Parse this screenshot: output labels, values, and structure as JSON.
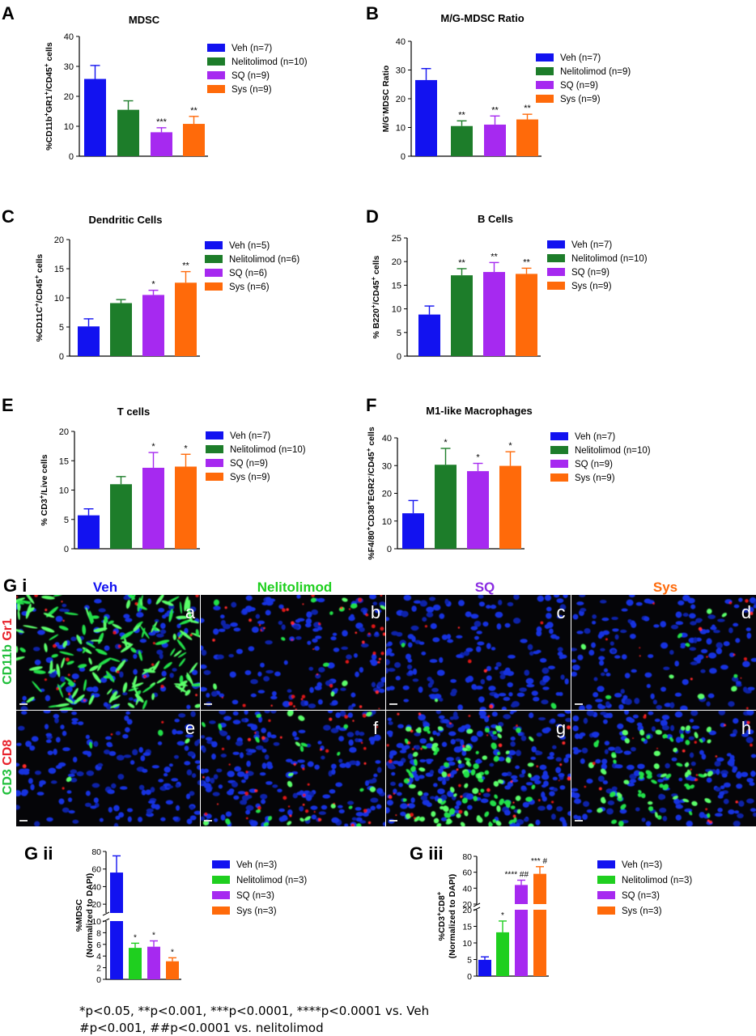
{
  "colors": {
    "veh": "#1212f0",
    "nel": "#1d7d2a",
    "nel_light": "#1fcf1f",
    "sq": "#a629f0",
    "sys": "#ff6a0a",
    "axis": "#000000"
  },
  "footnotes": {
    "line1": "*p<0.05, **p<0.001, ***p<0.0001, ****p<0.0001 vs. Veh",
    "line2": "#p<0.001, ##p<0.0001 vs. nelitolimod"
  },
  "micrograph": {
    "panel_label": "G i",
    "columns": [
      "Veh",
      "Nelitolimod",
      "SQ",
      "Sys"
    ],
    "column_colors": [
      "#1212f0",
      "#1fcf1f",
      "#8a2be2",
      "#ff6a0a"
    ],
    "row1_label_green": "CD11b",
    "row1_label_red": "Gr1",
    "row2_label_green": "CD3",
    "row2_label_red": "CD8",
    "tile_letters": [
      "a",
      "b",
      "c",
      "d",
      "e",
      "f",
      "g",
      "h"
    ]
  },
  "chart_data": [
    {
      "panel": "A",
      "type": "bar",
      "title": "MDSC",
      "ylabel": "%CD11b+GR1+/CD45+ cells",
      "ylim": [
        0,
        40
      ],
      "yticks": [
        0,
        10,
        20,
        30,
        40
      ],
      "categories": [
        "Veh (n=7)",
        "Nelitolimod (n=10)",
        "SQ (n=9)",
        "Sys (n=9)"
      ],
      "values": [
        25.8,
        15.5,
        8.0,
        10.8
      ],
      "errors": [
        4.5,
        3.0,
        1.5,
        2.5
      ],
      "significance": [
        "",
        "",
        "***",
        "**"
      ],
      "legend_position": "right"
    },
    {
      "panel": "B",
      "type": "bar",
      "title": "M/G-MDSC Ratio",
      "ylabel": "M/G-MDSC Ratio",
      "ylim": [
        0,
        40
      ],
      "yticks": [
        0,
        10,
        20,
        30,
        40
      ],
      "categories": [
        "Veh (n=7)",
        "Nelitolimod (n=9)",
        "SQ (n=9)",
        "Sys (n=9)"
      ],
      "values": [
        26.5,
        10.5,
        11.0,
        12.8
      ],
      "errors": [
        4.0,
        1.8,
        3.0,
        1.8
      ],
      "significance": [
        "",
        "**",
        "**",
        "**"
      ],
      "legend_position": "right"
    },
    {
      "panel": "C",
      "type": "bar",
      "title": "Dendritic Cells",
      "ylabel": "%CD11C+/CD45+ cells",
      "ylim": [
        0,
        20
      ],
      "yticks": [
        0,
        5,
        10,
        15,
        20
      ],
      "categories": [
        "Veh (n=5)",
        "Nelitolimod (n=6)",
        "SQ (n=6)",
        "Sys (n=6)"
      ],
      "values": [
        5.1,
        9.1,
        10.5,
        12.6
      ],
      "errors": [
        1.3,
        0.6,
        0.8,
        1.9
      ],
      "significance": [
        "",
        "",
        "*",
        "**"
      ],
      "legend_position": "right"
    },
    {
      "panel": "D",
      "type": "bar",
      "title": "B Cells",
      "ylabel": "% B220+/CD45+ cells",
      "ylim": [
        0,
        25
      ],
      "yticks": [
        0,
        5,
        10,
        15,
        20,
        25
      ],
      "categories": [
        "Veh (n=7)",
        "Nelitolimod (n=10)",
        "SQ (n=9)",
        "Sys (n=9)"
      ],
      "values": [
        8.8,
        17.1,
        17.8,
        17.4
      ],
      "errors": [
        1.8,
        1.4,
        2.0,
        1.2
      ],
      "significance": [
        "",
        "**",
        "**",
        "**"
      ],
      "legend_position": "right"
    },
    {
      "panel": "E",
      "type": "bar",
      "title": "T cells",
      "ylabel": "% CD3+/Live cells",
      "ylim": [
        0,
        20
      ],
      "yticks": [
        0,
        5,
        10,
        15,
        20
      ],
      "categories": [
        "Veh (n=7)",
        "Nelitolimod (n=10)",
        "SQ (n=9)",
        "Sys (n=9)"
      ],
      "values": [
        5.7,
        11.0,
        13.8,
        14.0
      ],
      "errors": [
        1.1,
        1.3,
        2.6,
        2.1
      ],
      "significance": [
        "",
        "",
        "*",
        "*"
      ],
      "legend_position": "right"
    },
    {
      "panel": "F",
      "type": "bar",
      "title": "M1-like Macrophages",
      "ylabel": "%F4/80+CD38+EGR2-/CD45+ cells",
      "ylim": [
        0,
        40
      ],
      "yticks": [
        0,
        10,
        20,
        30,
        40
      ],
      "categories": [
        "Veh (n=7)",
        "Nelitolimod (n=10)",
        "SQ (n=9)",
        "Sys (n=9)"
      ],
      "values": [
        12.8,
        30.3,
        28.0,
        29.9
      ],
      "errors": [
        4.6,
        5.9,
        2.8,
        5.1
      ],
      "significance": [
        "",
        "*",
        "*",
        "*"
      ],
      "legend_position": "right"
    },
    {
      "panel": "G ii",
      "type": "bar",
      "title": "",
      "ylabel": "%MDSC (Normalized to DAPI)",
      "broken_axis": true,
      "lower_ylim": [
        0,
        10
      ],
      "lower_yticks": [
        0,
        2,
        4,
        6,
        8,
        10
      ],
      "upper_ylim": [
        10,
        80
      ],
      "upper_yticks": [
        20,
        40,
        60,
        80
      ],
      "categories": [
        "Veh (n=3)",
        "Nelitolimod (n=3)",
        "SQ (n=3)",
        "Sys (n=3)"
      ],
      "values": [
        56,
        5.4,
        5.6,
        3.1
      ],
      "errors": [
        19,
        0.8,
        1.0,
        0.6
      ],
      "significance": [
        "",
        "*",
        "*",
        "*"
      ],
      "legend_position": "right"
    },
    {
      "panel": "G iii",
      "type": "bar",
      "title": "",
      "ylabel": "%CD3+CD8+ (Normalized to DAPI)",
      "broken_axis": true,
      "lower_ylim": [
        0,
        20
      ],
      "lower_yticks": [
        0,
        5,
        10,
        15,
        20
      ],
      "upper_ylim": [
        20,
        80
      ],
      "upper_yticks": [
        20,
        40,
        60,
        80
      ],
      "categories": [
        "Veh (n=3)",
        "Nelitolimod (n=3)",
        "SQ (n=3)",
        "Sys (n=3)"
      ],
      "values": [
        4.9,
        13.2,
        44,
        58
      ],
      "errors": [
        0.9,
        3.4,
        6,
        9
      ],
      "significance": [
        "",
        "*",
        "**** ##",
        "*** #"
      ],
      "legend_position": "right"
    }
  ]
}
